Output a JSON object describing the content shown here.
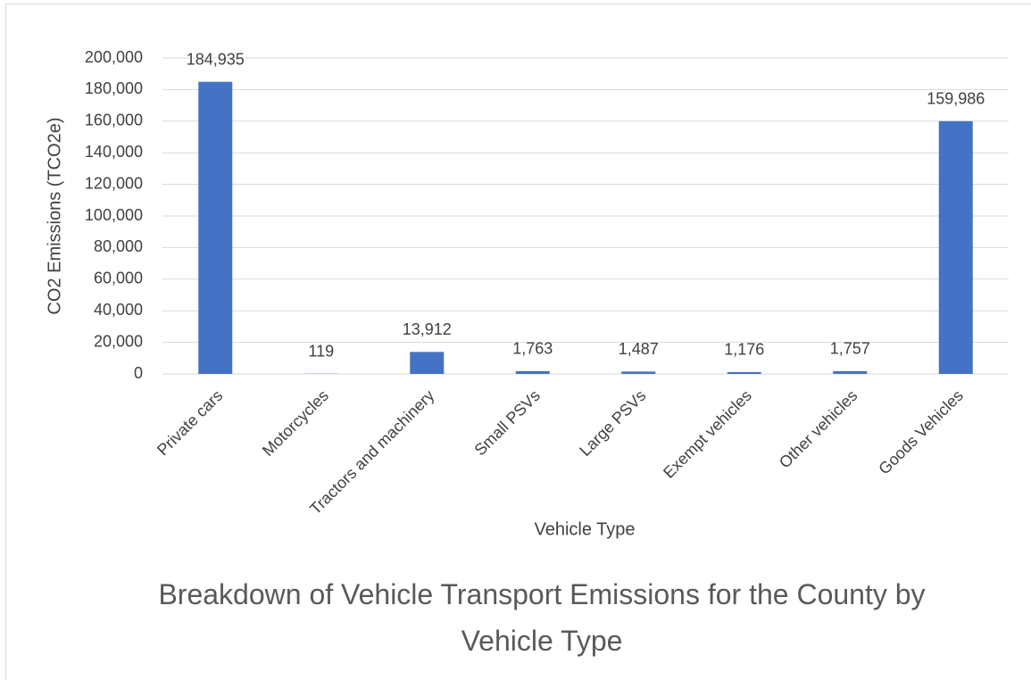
{
  "chart_data": {
    "type": "bar",
    "title": "Breakdown of Vehicle Transport Emissions for the County by Vehicle Type",
    "x_label": "Vehicle Type",
    "y_label": "CO2 Emissions (TCO2e)",
    "categories": [
      "Private cars",
      "Motorcycles",
      "Tractors and machinery",
      "Small PSVs",
      "Large PSVs",
      "Exempt vehicles",
      "Other vehicles",
      "Goods Vehicles"
    ],
    "values": [
      184935,
      119,
      13912,
      1763,
      1487,
      1176,
      1757,
      159986
    ],
    "value_labels": [
      "184,935",
      "119",
      "13,912",
      "1,763",
      "1,487",
      "1,176",
      "1,757",
      "159,986"
    ],
    "color": "#4472c4",
    "ylim": [
      0,
      200000
    ],
    "yticks": [
      0,
      {
        "value": 20000,
        "label": "20,000"
      },
      {
        "value": 40000,
        "label": "40,000"
      },
      {
        "value": 60000,
        "label": "60,000"
      },
      {
        "value": 80000,
        "label": "80,000"
      },
      {
        "value": 100000,
        "label": "100,000"
      },
      {
        "value": 120000,
        "label": "120,000"
      },
      {
        "value": 140000,
        "label": "140,000"
      },
      {
        "value": 160000,
        "label": "160,000"
      },
      {
        "value": 180000,
        "label": "180,000"
      },
      {
        "value": 200000,
        "label": "200,000"
      }
    ],
    "grid": true
  }
}
